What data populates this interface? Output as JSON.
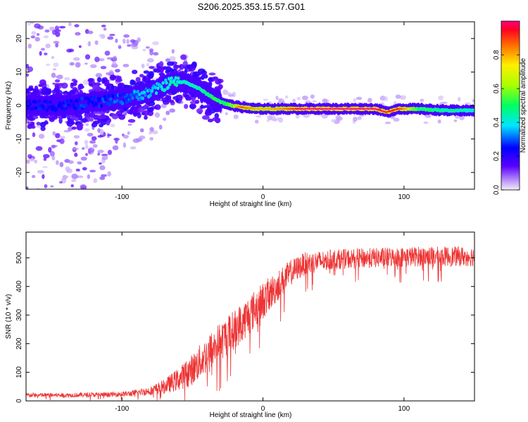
{
  "title": "S206.2025.353.15.57.G01",
  "chart_data": [
    {
      "type": "heatmap",
      "xlabel": "Height of straight line (km)",
      "ylabel": "Frequency (Hz)",
      "xlim": [
        -168,
        150
      ],
      "ylim": [
        -25,
        25
      ],
      "xticks": [
        {
          "value": -100,
          "label": "-100"
        },
        {
          "value": 0,
          "label": "0"
        },
        {
          "value": 100,
          "label": "100"
        }
      ],
      "yticks": [
        {
          "value": -20,
          "label": "-20"
        },
        {
          "value": -10,
          "label": "-10"
        },
        {
          "value": 0,
          "label": "0"
        },
        {
          "value": 10,
          "label": "10"
        },
        {
          "value": 20,
          "label": "20"
        }
      ],
      "ridge": {
        "description": "frequency of peak spectral amplitude along the track",
        "x": [
          -168,
          -140,
          -120,
          -100,
          -80,
          -65,
          -55,
          -45,
          -38,
          -30,
          -22,
          -15,
          -5,
          5,
          15,
          30,
          60,
          80,
          88,
          96,
          110,
          130,
          150
        ],
        "y": [
          0,
          0,
          1,
          2,
          4,
          7,
          7,
          5,
          3,
          1,
          0,
          -0.5,
          -1,
          -1,
          -1,
          -1,
          -1,
          -1,
          -2,
          -1,
          -1,
          -1.5,
          -1.5
        ],
        "amplitude": [
          0.1,
          0.12,
          0.15,
          0.2,
          0.3,
          0.45,
          0.45,
          0.45,
          0.55,
          0.6,
          0.7,
          0.9,
          0.8,
          0.8,
          0.85,
          1.0,
          1.0,
          1.0,
          0.95,
          0.95,
          0.6,
          0.5,
          0.45
        ]
      },
      "colorbar": {
        "label": "Normalized spectral amplitude",
        "range": [
          0,
          1
        ],
        "ticks": [
          {
            "value": 0,
            "label": "0.0"
          },
          {
            "value": 0.2,
            "label": "0.2"
          },
          {
            "value": 0.4,
            "label": "0.4"
          },
          {
            "value": 0.6,
            "label": "0.6"
          },
          {
            "value": 0.8,
            "label": "0.8"
          }
        ]
      }
    },
    {
      "type": "line",
      "xlabel": "Height of straight line (km)",
      "ylabel": "SNR (10 * v/v)",
      "xlim": [
        -168,
        150
      ],
      "ylim": [
        0,
        590
      ],
      "xticks": [
        {
          "value": -100,
          "label": "-100"
        },
        {
          "value": 0,
          "label": "0"
        },
        {
          "value": 100,
          "label": "100"
        }
      ],
      "yticks": [
        {
          "value": 0,
          "label": "0"
        },
        {
          "value": 100,
          "label": "100"
        },
        {
          "value": 200,
          "label": "200"
        },
        {
          "value": 300,
          "label": "300"
        },
        {
          "value": 400,
          "label": "400"
        },
        {
          "value": 500,
          "label": "500"
        }
      ],
      "series": [
        {
          "name": "SNR",
          "color": "#ee3333",
          "x": [
            -168,
            -140,
            -110,
            -95,
            -80,
            -70,
            -60,
            -50,
            -40,
            -30,
            -20,
            -10,
            0,
            10,
            20,
            30,
            50,
            80,
            110,
            130,
            150
          ],
          "y": [
            20,
            20,
            22,
            25,
            35,
            50,
            75,
            110,
            160,
            210,
            250,
            300,
            350,
            400,
            450,
            480,
            495,
            500,
            505,
            505,
            505
          ],
          "noise": [
            8,
            8,
            8,
            10,
            15,
            25,
            40,
            55,
            65,
            70,
            70,
            70,
            65,
            55,
            45,
            40,
            35,
            35,
            35,
            35,
            35
          ]
        }
      ]
    }
  ]
}
